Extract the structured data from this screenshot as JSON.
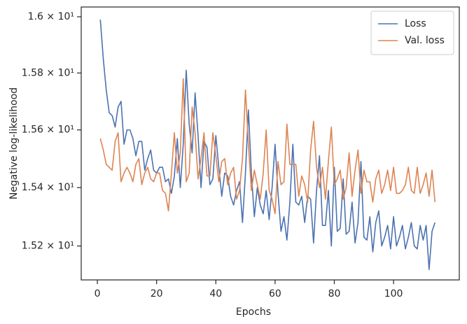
{
  "chart_data": {
    "type": "line",
    "xlabel": "Epochs",
    "ylabel": "Negative log-likelihood",
    "yscale": "log",
    "legend": "upper right",
    "xlim": [
      -5.45,
      122.2
    ],
    "xticks": [
      0,
      20,
      40,
      60,
      80,
      100
    ],
    "ylim": [
      15.085,
      16.035
    ],
    "yticks": [
      {
        "value": 15.2,
        "label": "1.52 × 10¹"
      },
      {
        "value": 15.4,
        "label": "1.54 × 10¹"
      },
      {
        "value": 15.6,
        "label": "1.56 × 10¹"
      },
      {
        "value": 15.8,
        "label": "1.58 × 10¹"
      },
      {
        "value": 16.0,
        "label": "1.6 × 10¹"
      }
    ],
    "x": [
      1,
      2,
      3,
      4,
      5,
      6,
      7,
      8,
      9,
      10,
      11,
      12,
      13,
      14,
      15,
      16,
      17,
      18,
      19,
      20,
      21,
      22,
      23,
      24,
      25,
      26,
      27,
      28,
      29,
      30,
      31,
      32,
      33,
      34,
      35,
      36,
      37,
      38,
      39,
      40,
      41,
      42,
      43,
      44,
      45,
      46,
      47,
      48,
      49,
      50,
      51,
      52,
      53,
      54,
      55,
      56,
      57,
      58,
      59,
      60,
      61,
      62,
      63,
      64,
      65,
      66,
      67,
      68,
      69,
      70,
      71,
      72,
      73,
      74,
      75,
      76,
      77,
      78,
      79,
      80,
      81,
      82,
      83,
      84,
      85,
      86,
      87,
      88,
      89,
      90,
      91,
      92,
      93,
      94,
      95,
      96,
      97,
      98,
      99,
      100,
      101,
      102,
      103,
      104,
      105,
      106,
      107,
      108,
      109,
      110,
      111,
      112,
      113,
      114
    ],
    "series": [
      {
        "name": "Loss",
        "color": "#4c72b0",
        "values": [
          15.99,
          15.85,
          15.74,
          15.66,
          15.65,
          15.61,
          15.68,
          15.7,
          15.55,
          15.6,
          15.6,
          15.57,
          15.51,
          15.56,
          15.56,
          15.46,
          15.5,
          15.53,
          15.46,
          15.45,
          15.47,
          15.47,
          15.42,
          15.43,
          15.38,
          15.44,
          15.57,
          15.4,
          15.55,
          15.81,
          15.62,
          15.52,
          15.73,
          15.58,
          15.4,
          15.56,
          15.54,
          15.41,
          15.43,
          15.58,
          15.47,
          15.37,
          15.45,
          15.44,
          15.37,
          15.34,
          15.39,
          15.42,
          15.28,
          15.45,
          15.67,
          15.45,
          15.3,
          15.4,
          15.34,
          15.31,
          15.39,
          15.29,
          15.4,
          15.55,
          15.38,
          15.25,
          15.3,
          15.22,
          15.35,
          15.55,
          15.35,
          15.34,
          15.37,
          15.28,
          15.37,
          15.36,
          15.21,
          15.39,
          15.51,
          15.27,
          15.27,
          15.39,
          15.2,
          15.47,
          15.25,
          15.26,
          15.43,
          15.24,
          15.25,
          15.35,
          15.21,
          15.28,
          15.49,
          15.23,
          15.22,
          15.3,
          15.18,
          15.28,
          15.32,
          15.2,
          15.23,
          15.27,
          15.19,
          15.3,
          15.2,
          15.23,
          15.27,
          15.19,
          15.23,
          15.28,
          15.2,
          15.19,
          15.27,
          15.22,
          15.27,
          15.12,
          15.25,
          15.28
        ]
      },
      {
        "name": "Val. loss",
        "color": "#dd8452",
        "values": [
          15.57,
          15.53,
          15.48,
          15.47,
          15.46,
          15.56,
          15.59,
          15.42,
          15.45,
          15.47,
          15.45,
          15.42,
          15.48,
          15.5,
          15.41,
          15.45,
          15.47,
          15.43,
          15.42,
          15.45,
          15.45,
          15.39,
          15.38,
          15.32,
          15.45,
          15.59,
          15.45,
          15.52,
          15.78,
          15.42,
          15.45,
          15.68,
          15.59,
          15.43,
          15.5,
          15.59,
          15.44,
          15.44,
          15.59,
          15.51,
          15.42,
          15.49,
          15.5,
          15.41,
          15.45,
          15.47,
          15.36,
          15.39,
          15.5,
          15.74,
          15.55,
          15.39,
          15.46,
          15.41,
          15.36,
          15.45,
          15.6,
          15.39,
          15.36,
          15.31,
          15.49,
          15.41,
          15.42,
          15.62,
          15.48,
          15.48,
          15.48,
          15.37,
          15.44,
          15.41,
          15.35,
          15.53,
          15.63,
          15.47,
          15.4,
          15.47,
          15.36,
          15.49,
          15.61,
          15.41,
          15.43,
          15.46,
          15.36,
          15.4,
          15.52,
          15.37,
          15.46,
          15.53,
          15.38,
          15.46,
          15.42,
          15.42,
          15.35,
          15.43,
          15.46,
          15.38,
          15.41,
          15.46,
          15.39,
          15.47,
          15.38,
          15.38,
          15.39,
          15.41,
          15.47,
          15.39,
          15.38,
          15.47,
          15.38,
          15.41,
          15.45,
          15.37,
          15.46,
          15.35
        ]
      }
    ]
  }
}
